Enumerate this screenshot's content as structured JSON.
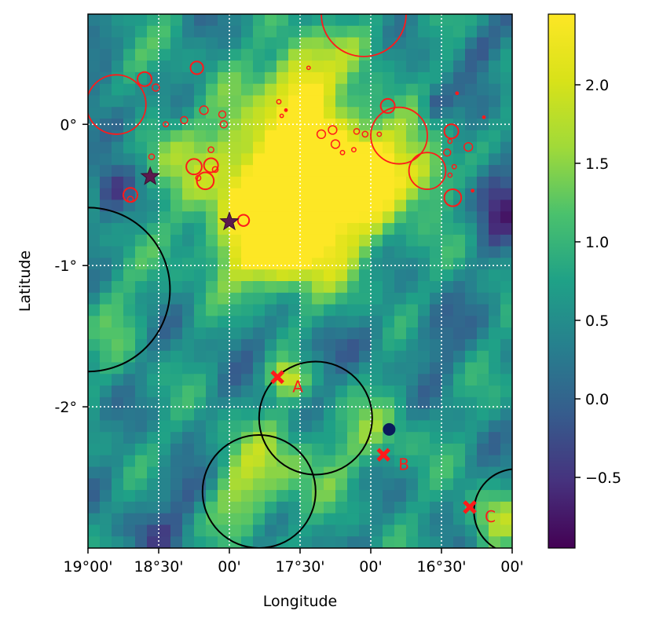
{
  "chart_data": {
    "type": "heatmap",
    "xlabel": "Longitude",
    "ylabel": "Latitude",
    "xlim": [
      19.0,
      16.0
    ],
    "ylim": [
      -3.0,
      0.78
    ],
    "x_ticks": [
      {
        "value": 19.0,
        "label": "19°00'"
      },
      {
        "value": 18.5,
        "label": "18°30'"
      },
      {
        "value": 18.0,
        "label": "00'"
      },
      {
        "value": 17.5,
        "label": "17°30'"
      },
      {
        "value": 17.0,
        "label": "00'"
      },
      {
        "value": 16.5,
        "label": "16°30'"
      },
      {
        "value": 16.0,
        "label": "00'"
      }
    ],
    "y_ticks": [
      {
        "value": 0,
        "label": "0°"
      },
      {
        "value": -1,
        "label": "-1°"
      },
      {
        "value": -2,
        "label": "-2°"
      }
    ],
    "grid_x": [
      18.5,
      18.0,
      17.5,
      17.0,
      16.5
    ],
    "grid_y": [
      0,
      -1,
      -2
    ],
    "grid": true,
    "colorbar": {
      "min": -0.95,
      "max": 2.45,
      "ticks": [
        {
          "value": 2.0,
          "label": "2.0"
        },
        {
          "value": 1.5,
          "label": "1.5"
        },
        {
          "value": 1.0,
          "label": "1.0"
        },
        {
          "value": 0.5,
          "label": "0.5"
        },
        {
          "value": 0.0,
          "label": "0.0"
        },
        {
          "value": -0.5,
          "label": "−0.5"
        }
      ]
    },
    "blobs": [
      {
        "x": 17.55,
        "y": -0.45,
        "rx": 0.55,
        "ry": 0.55,
        "v": 3.3
      },
      {
        "x": 17.5,
        "y": 0.3,
        "rx": 0.22,
        "ry": 0.3,
        "v": 1.6
      },
      {
        "x": 17.7,
        "y": -0.9,
        "rx": 0.35,
        "ry": 0.25,
        "v": 1.2
      },
      {
        "x": 17.0,
        "y": -0.3,
        "rx": 0.35,
        "ry": 0.35,
        "v": 1.3
      },
      {
        "x": 16.6,
        "y": -0.35,
        "rx": 0.18,
        "ry": 0.2,
        "v": 1.1
      },
      {
        "x": 18.5,
        "y": -0.15,
        "rx": 0.25,
        "ry": 0.3,
        "v": 0.7
      },
      {
        "x": 17.1,
        "y": 0.55,
        "rx": 0.3,
        "ry": 0.2,
        "v": 0.5
      },
      {
        "x": 17.6,
        "y": -1.8,
        "rx": 0.12,
        "ry": 0.12,
        "v": 1.3
      },
      {
        "x": 17.65,
        "y": -2.4,
        "rx": 0.45,
        "ry": 0.3,
        "v": 0.8
      },
      {
        "x": 17.9,
        "y": -2.65,
        "rx": 0.25,
        "ry": 0.25,
        "v": 0.8
      },
      {
        "x": 16.95,
        "y": -2.2,
        "rx": 0.3,
        "ry": 0.25,
        "v": 0.6
      },
      {
        "x": 16.15,
        "y": -2.8,
        "rx": 0.2,
        "ry": 0.2,
        "v": 1.0
      },
      {
        "x": 18.8,
        "y": -1.3,
        "rx": 0.2,
        "ry": 0.4,
        "v": 0.4
      },
      {
        "x": 18.7,
        "y": 0.45,
        "rx": 0.18,
        "ry": 0.15,
        "v": 0.4
      },
      {
        "x": 18.8,
        "y": 0.0,
        "rx": 0.2,
        "ry": 0.2,
        "v": -1.0
      },
      {
        "x": 18.85,
        "y": -0.45,
        "rx": 0.15,
        "ry": 0.2,
        "v": -0.8
      },
      {
        "x": 16.1,
        "y": -0.5,
        "rx": 0.18,
        "ry": 0.3,
        "v": -1.1
      },
      {
        "x": 16.55,
        "y": 0.15,
        "rx": 0.1,
        "ry": 0.12,
        "v": -0.8
      },
      {
        "x": 16.25,
        "y": 0.55,
        "rx": 0.15,
        "ry": 0.15,
        "v": -0.6
      },
      {
        "x": 18.3,
        "y": -2.6,
        "rx": 0.25,
        "ry": 0.2,
        "v": -0.6
      },
      {
        "x": 18.6,
        "y": -2.9,
        "rx": 0.25,
        "ry": 0.15,
        "v": -0.5
      },
      {
        "x": 17.35,
        "y": -1.6,
        "rx": 0.2,
        "ry": 0.15,
        "v": -0.5
      },
      {
        "x": 16.55,
        "y": -1.5,
        "rx": 0.2,
        "ry": 0.25,
        "v": -0.5
      },
      {
        "x": 17.9,
        "y": -1.5,
        "rx": 0.2,
        "ry": 0.2,
        "v": -0.3
      }
    ],
    "black_circles": [
      {
        "x": 19.0,
        "y": -1.17,
        "r": 0.58
      },
      {
        "x": 17.39,
        "y": -2.08,
        "r": 0.4
      },
      {
        "x": 17.79,
        "y": -2.6,
        "r": 0.4
      },
      {
        "x": 15.97,
        "y": -2.74,
        "r": 0.3
      }
    ],
    "red_open_circles": [
      {
        "x": 18.8,
        "y": 0.14,
        "r": 0.21,
        "w": 1.8
      },
      {
        "x": 17.05,
        "y": 0.78,
        "r": 0.3,
        "w": 1.8
      },
      {
        "x": 16.8,
        "y": -0.08,
        "r": 0.2,
        "w": 1.8
      },
      {
        "x": 16.6,
        "y": -0.33,
        "r": 0.13,
        "w": 1.8
      },
      {
        "x": 18.6,
        "y": 0.32,
        "r": 0.05,
        "w": 2
      },
      {
        "x": 18.23,
        "y": 0.4,
        "r": 0.045,
        "w": 2
      },
      {
        "x": 18.7,
        "y": -0.5,
        "r": 0.05,
        "w": 2
      },
      {
        "x": 18.25,
        "y": -0.3,
        "r": 0.055,
        "w": 2
      },
      {
        "x": 18.17,
        "y": -0.4,
        "r": 0.06,
        "w": 2
      },
      {
        "x": 18.13,
        "y": -0.29,
        "r": 0.05,
        "w": 2
      },
      {
        "x": 16.88,
        "y": 0.13,
        "r": 0.05,
        "w": 2
      },
      {
        "x": 16.43,
        "y": -0.05,
        "r": 0.05,
        "w": 2
      },
      {
        "x": 16.42,
        "y": -0.52,
        "r": 0.06,
        "w": 2
      },
      {
        "x": 17.9,
        "y": -0.68,
        "r": 0.04,
        "w": 2
      },
      {
        "x": 18.18,
        "y": 0.1,
        "r": 0.03,
        "w": 1.5
      },
      {
        "x": 18.05,
        "y": 0.07,
        "r": 0.025,
        "w": 1.5
      },
      {
        "x": 18.04,
        "y": 0.0,
        "r": 0.025,
        "w": 1.5
      },
      {
        "x": 18.32,
        "y": 0.03,
        "r": 0.025,
        "w": 1.5
      },
      {
        "x": 18.52,
        "y": 0.26,
        "r": 0.025,
        "w": 1.5
      },
      {
        "x": 18.13,
        "y": -0.18,
        "r": 0.02,
        "w": 1.5
      },
      {
        "x": 18.1,
        "y": -0.32,
        "r": 0.02,
        "w": 1.5
      },
      {
        "x": 18.22,
        "y": -0.38,
        "r": 0.018,
        "w": 1.5
      },
      {
        "x": 18.55,
        "y": -0.23,
        "r": 0.02,
        "w": 1.5
      },
      {
        "x": 18.7,
        "y": -0.53,
        "r": 0.02,
        "w": 1.5
      },
      {
        "x": 18.45,
        "y": 0.0,
        "r": 0.018,
        "w": 1.5
      },
      {
        "x": 17.35,
        "y": -0.07,
        "r": 0.03,
        "w": 1.5
      },
      {
        "x": 17.27,
        "y": -0.04,
        "r": 0.03,
        "w": 1.5
      },
      {
        "x": 17.25,
        "y": -0.14,
        "r": 0.03,
        "w": 1.5
      },
      {
        "x": 17.1,
        "y": -0.05,
        "r": 0.02,
        "w": 1.5
      },
      {
        "x": 17.04,
        "y": -0.07,
        "r": 0.02,
        "w": 1.5
      },
      {
        "x": 17.2,
        "y": -0.2,
        "r": 0.015,
        "w": 1.5
      },
      {
        "x": 17.12,
        "y": -0.18,
        "r": 0.015,
        "w": 1.5
      },
      {
        "x": 16.94,
        "y": -0.07,
        "r": 0.015,
        "w": 1.5
      },
      {
        "x": 16.46,
        "y": -0.2,
        "r": 0.025,
        "w": 1.5
      },
      {
        "x": 16.31,
        "y": -0.16,
        "r": 0.03,
        "w": 1.5
      },
      {
        "x": 16.44,
        "y": -0.12,
        "r": 0.015,
        "w": 1.5
      },
      {
        "x": 16.41,
        "y": -0.3,
        "r": 0.015,
        "w": 1.5
      },
      {
        "x": 16.44,
        "y": -0.36,
        "r": 0.015,
        "w": 1.5
      },
      {
        "x": 17.65,
        "y": 0.16,
        "r": 0.015,
        "w": 1.5
      },
      {
        "x": 17.63,
        "y": 0.06,
        "r": 0.012,
        "w": 1.5
      },
      {
        "x": 17.44,
        "y": 0.4,
        "r": 0.012,
        "w": 1.5
      }
    ],
    "red_dots": [
      {
        "x": 17.6,
        "y": 0.1
      },
      {
        "x": 16.39,
        "y": 0.22
      },
      {
        "x": 16.2,
        "y": 0.05
      },
      {
        "x": 16.28,
        "y": -0.47
      }
    ],
    "stars": [
      {
        "x": 18.56,
        "y": -0.37
      },
      {
        "x": 18.0,
        "y": -0.69
      }
    ],
    "navy_point": {
      "x": 16.87,
      "y": -2.16
    },
    "markers": [
      {
        "label": "A",
        "x": 17.66,
        "y": -1.79
      },
      {
        "label": "B",
        "x": 16.91,
        "y": -2.34
      },
      {
        "label": "C",
        "x": 16.3,
        "y": -2.71
      }
    ]
  }
}
